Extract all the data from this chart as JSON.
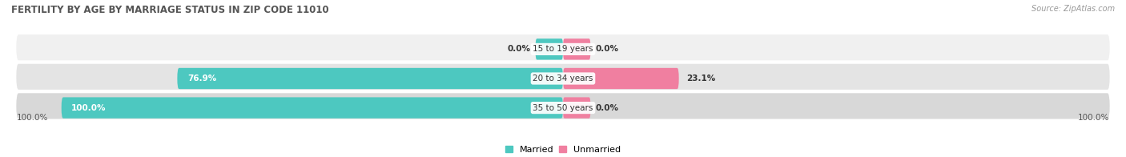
{
  "title": "FERTILITY BY AGE BY MARRIAGE STATUS IN ZIP CODE 11010",
  "source": "Source: ZipAtlas.com",
  "categories": [
    "15 to 19 years",
    "20 to 34 years",
    "35 to 50 years"
  ],
  "married_values": [
    0.0,
    76.9,
    100.0
  ],
  "unmarried_values": [
    0.0,
    23.1,
    0.0
  ],
  "married_color": "#4dc8c0",
  "unmarried_color": "#f07fa0",
  "row_bg_color": "#ececec",
  "row_alt_bg_color": "#e0e0e0",
  "label_color": "#333333",
  "title_color": "#555555",
  "axis_label_left": "100.0%",
  "axis_label_right": "100.0%",
  "small_bar_width": 5.5,
  "figsize": [
    14.06,
    1.96
  ],
  "dpi": 100
}
